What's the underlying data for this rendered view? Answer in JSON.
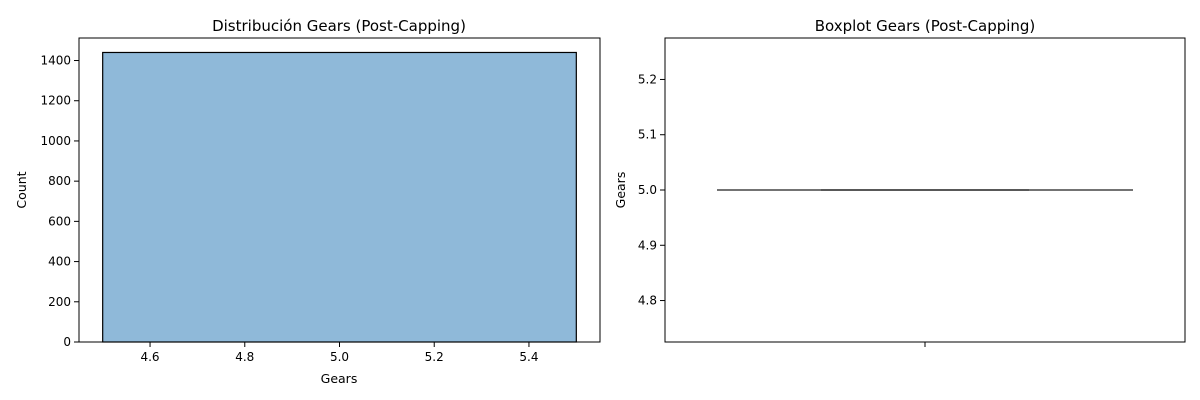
{
  "chart_data": [
    {
      "type": "bar",
      "title": "Distribución Gears (Post-Capping)",
      "xlabel": "Gears",
      "ylabel": "Count",
      "bins": [
        {
          "x0": 4.5,
          "x1": 5.5,
          "count": 1440
        }
      ],
      "xlim": [
        4.45,
        5.55
      ],
      "ylim": [
        0,
        1512
      ],
      "xticks": [
        4.6,
        4.8,
        5.0,
        5.2,
        5.4
      ],
      "xtick_labels": [
        "4.6",
        "4.8",
        "5.0",
        "5.2",
        "5.4"
      ],
      "yticks": [
        0,
        200,
        400,
        600,
        800,
        1000,
        1200,
        1400
      ],
      "ytick_labels": [
        "0",
        "200",
        "400",
        "600",
        "800",
        "1000",
        "1200",
        "1400"
      ],
      "bar_color": "#8fb9d9",
      "grid": false
    },
    {
      "type": "box",
      "title": "Boxplot Gears (Post-Capping)",
      "xlabel": "",
      "ylabel": "Gears",
      "stats": {
        "min": 5.0,
        "q1": 5.0,
        "median": 5.0,
        "q3": 5.0,
        "max": 5.0
      },
      "ylim": [
        4.725,
        5.275
      ],
      "yticks": [
        4.8,
        4.9,
        5.0,
        5.1,
        5.2
      ],
      "ytick_labels": [
        "4.8",
        "4.9",
        "5.0",
        "5.1",
        "5.2"
      ],
      "line_color": "#3d3d3d",
      "grid": false
    }
  ]
}
